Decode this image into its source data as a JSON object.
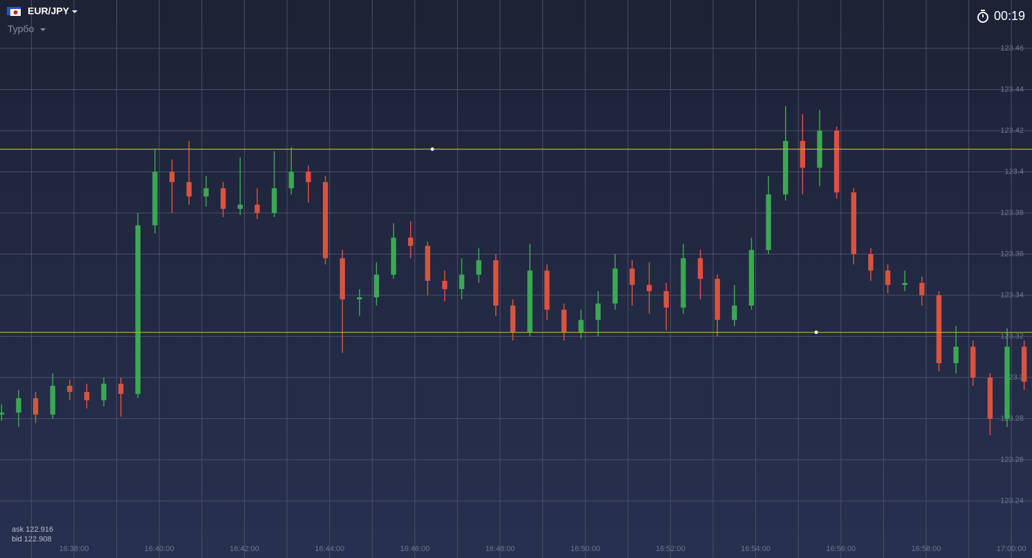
{
  "header": {
    "pair": "EUR/JPY",
    "mode": "Турбо",
    "timer": "00:19"
  },
  "quotes": {
    "ask": "ask 122.916",
    "bid": "bid 122.908"
  },
  "chart_data": {
    "type": "candlestick",
    "x": [
      36.3,
      36.7,
      37.1,
      37.5,
      37.9,
      38.3,
      38.7,
      39.1,
      39.5,
      39.9,
      40.3,
      40.7,
      41.1,
      41.5,
      41.9,
      42.3,
      42.7,
      43.1,
      43.5,
      43.9,
      44.3,
      44.7,
      45.1,
      45.5,
      45.9,
      46.3,
      46.7,
      47.1,
      47.5,
      47.9,
      48.3,
      48.7,
      49.1,
      49.5,
      49.9,
      50.3,
      50.7,
      51.1,
      51.5,
      51.9,
      52.3,
      52.7,
      53.1,
      53.5,
      53.9,
      54.3,
      54.7,
      55.1,
      55.5,
      55.9,
      56.3,
      56.7,
      57.1,
      57.5,
      57.9,
      58.3,
      58.7,
      59.1,
      59.5,
      59.9,
      60.3
    ],
    "open": [
      123.282,
      123.283,
      123.29,
      123.282,
      123.296,
      123.293,
      123.289,
      123.297,
      123.292,
      123.374,
      123.4,
      123.395,
      123.388,
      123.392,
      123.382,
      123.384,
      123.38,
      123.392,
      123.4,
      123.395,
      123.358,
      123.338,
      123.339,
      123.35,
      123.368,
      123.364,
      123.347,
      123.343,
      123.35,
      123.357,
      123.335,
      123.322,
      123.352,
      123.333,
      123.322,
      123.328,
      123.336,
      123.353,
      123.345,
      123.342,
      123.334,
      123.358,
      123.348,
      123.328,
      123.335,
      123.362,
      123.389,
      123.415,
      123.402,
      123.42,
      123.39,
      123.36,
      123.352,
      123.345,
      123.346,
      123.34,
      123.307,
      123.315,
      123.3,
      123.28,
      123.315
    ],
    "high": [
      123.287,
      123.294,
      123.293,
      123.302,
      123.299,
      123.297,
      123.3,
      123.3,
      123.38,
      123.411,
      123.406,
      123.415,
      123.398,
      123.395,
      123.407,
      123.392,
      123.41,
      123.412,
      123.403,
      123.398,
      123.362,
      123.343,
      123.356,
      123.375,
      123.376,
      123.366,
      123.352,
      123.358,
      123.363,
      123.36,
      123.338,
      123.365,
      123.355,
      123.336,
      123.333,
      123.342,
      123.36,
      123.357,
      123.356,
      123.346,
      123.365,
      123.362,
      123.35,
      123.345,
      123.368,
      123.398,
      123.432,
      123.428,
      123.43,
      123.422,
      123.392,
      123.363,
      123.355,
      123.352,
      123.349,
      123.342,
      123.325,
      123.318,
      123.302,
      123.324,
      123.318
    ],
    "low": [
      123.279,
      123.276,
      123.278,
      123.28,
      123.289,
      123.285,
      123.286,
      123.281,
      123.29,
      123.37,
      123.38,
      123.384,
      123.383,
      123.378,
      123.379,
      123.377,
      123.378,
      123.389,
      123.385,
      123.355,
      123.312,
      123.33,
      123.335,
      123.348,
      123.358,
      123.34,
      123.337,
      123.338,
      123.346,
      123.33,
      123.318,
      123.32,
      123.328,
      123.318,
      123.319,
      123.32,
      123.333,
      123.335,
      123.331,
      123.323,
      123.331,
      123.338,
      123.32,
      123.325,
      123.333,
      123.36,
      123.386,
      123.389,
      123.393,
      123.387,
      123.355,
      123.347,
      123.341,
      123.342,
      123.335,
      123.303,
      123.302,
      123.296,
      123.272,
      123.276,
      123.294
    ],
    "close": [
      123.283,
      123.29,
      123.282,
      123.296,
      123.293,
      123.289,
      123.297,
      123.292,
      123.374,
      123.4,
      123.395,
      123.388,
      123.392,
      123.382,
      123.384,
      123.38,
      123.392,
      123.4,
      123.395,
      123.358,
      123.338,
      123.339,
      123.35,
      123.368,
      123.364,
      123.347,
      123.343,
      123.35,
      123.357,
      123.335,
      123.322,
      123.352,
      123.333,
      123.322,
      123.328,
      123.336,
      123.353,
      123.345,
      123.342,
      123.334,
      123.358,
      123.348,
      123.328,
      123.335,
      123.362,
      123.389,
      123.415,
      123.402,
      123.42,
      123.39,
      123.36,
      123.352,
      123.345,
      123.346,
      123.34,
      123.307,
      123.315,
      123.3,
      123.28,
      123.315,
      123.298
    ],
    "up_color": "#3ba853",
    "down_color": "#d9533f",
    "levels": [
      123.411,
      123.322
    ],
    "level_color": "#b7b23a",
    "markers": [
      {
        "x": 46.41,
        "y": 123.411
      },
      {
        "x": 55.42,
        "y": 123.322
      }
    ],
    "xlim": [
      36.263,
      60.484
    ],
    "xticks": [
      {
        "value": 38,
        "label": "16:38:00"
      },
      {
        "value": 40,
        "label": "16:40:00"
      },
      {
        "value": 42,
        "label": "16:42:00"
      },
      {
        "value": 44,
        "label": "16:44:00"
      },
      {
        "value": 46,
        "label": "16:46:00"
      },
      {
        "value": 48,
        "label": "16:48:00"
      },
      {
        "value": 50,
        "label": "16:50:00"
      },
      {
        "value": 52,
        "label": "16:52:00"
      },
      {
        "value": 54,
        "label": "16:54:00"
      },
      {
        "value": 56,
        "label": "16:56:00"
      },
      {
        "value": 58,
        "label": "16:58:00"
      },
      {
        "value": 60,
        "label": "17:00:00"
      }
    ],
    "ylim": [
      123.2123,
      123.4835
    ],
    "yticks": [
      123.46,
      123.44,
      123.42,
      123.4,
      123.38,
      123.36,
      123.34,
      123.32,
      123.3,
      123.28,
      123.26,
      123.24
    ],
    "grid": true
  }
}
